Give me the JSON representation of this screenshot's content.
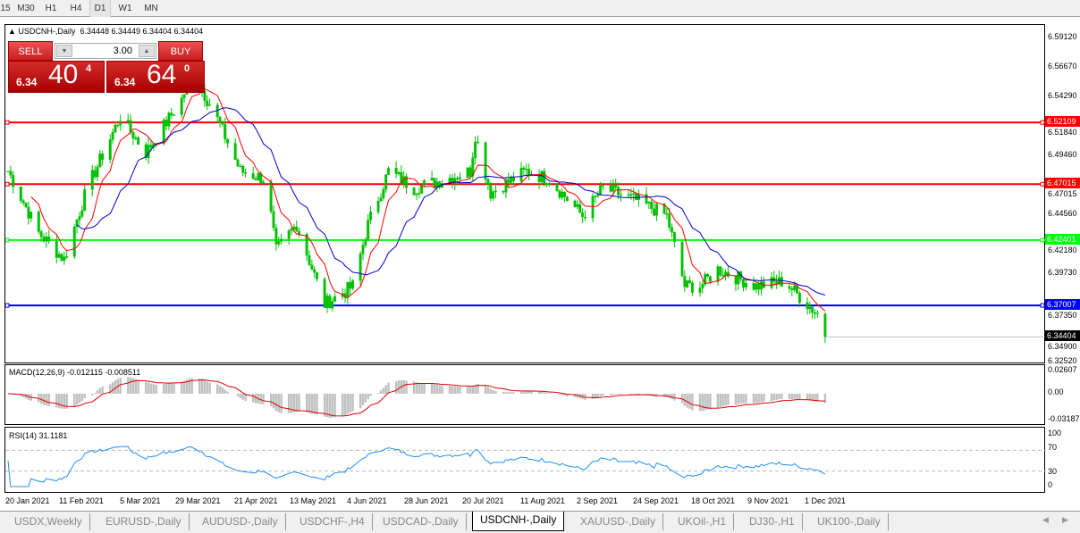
{
  "timeframes": [
    {
      "label": "15"
    },
    {
      "label": "M30"
    },
    {
      "label": "H1"
    },
    {
      "label": "H4"
    },
    {
      "label": "D1",
      "selected": true
    },
    {
      "label": "W1"
    },
    {
      "label": "MN"
    }
  ],
  "chart": {
    "title": "USDCNH-,Daily",
    "ohlc": "6.34448 6.34449 6.34404 6.34404"
  },
  "trade": {
    "sell_label": "SELL",
    "buy_label": "BUY",
    "lot": "3.00",
    "sell_prefix": "6.34",
    "sell_big": "40",
    "sell_sup": "4",
    "buy_prefix": "6.34",
    "buy_big": "64",
    "buy_sup": "0"
  },
  "price_axis": [
    "6.59120",
    "6.56670",
    "6.54290",
    "6.51840",
    "6.49460",
    "6.47015",
    "6.44560",
    "6.42180",
    "6.39730",
    "6.37350",
    "6.34900",
    "6.32520"
  ],
  "hlines": [
    {
      "value": "6.52109",
      "color": "#ff0000"
    },
    {
      "value": "6.47015",
      "color": "#ff0000"
    },
    {
      "value": "6.42401",
      "color": "#00ff00"
    },
    {
      "value": "6.37007",
      "color": "#0000ff"
    }
  ],
  "current_price": "6.34404",
  "macd": {
    "label": "MACD(12,26,9) -0.012115 -0.008511",
    "axis": [
      "0.02607",
      "0.00",
      "-0.03187"
    ]
  },
  "rsi": {
    "label": "RSI(14) 31.1181",
    "axis": [
      "100",
      "70",
      "30",
      "0"
    ]
  },
  "dates": [
    "20 Jan 2021",
    "11 Feb 2021",
    "5 Mar 2021",
    "29 Mar 2021",
    "21 Apr 2021",
    "13 May 2021",
    "4 Jun 2021",
    "28 Jun 2021",
    "20 Jul 2021",
    "11 Aug 2021",
    "2 Sep 2021",
    "24 Sep 2021",
    "18 Oct 2021",
    "9 Nov 2021",
    "1 Dec 2021"
  ],
  "tabs": [
    {
      "label": "USDX,Weekly"
    },
    {
      "label": "EURUSD-,Daily"
    },
    {
      "label": "AUDUSD-,Daily"
    },
    {
      "label": "USDCHF-,H4"
    },
    {
      "label": "USDCAD-,Daily"
    },
    {
      "label": "USDCNH-,Daily",
      "active": true
    },
    {
      "label": "XAUUSD-,Daily"
    },
    {
      "label": "UKOil-,H1"
    },
    {
      "label": "DJ30-,H1"
    },
    {
      "label": "UK100-,Daily"
    }
  ],
  "chart_data": {
    "type": "candlestick",
    "symbol": "USDCNH-",
    "timeframe": "Daily",
    "ylim": [
      6.3252,
      6.5912
    ],
    "closes": [
      [
        "2021-01-20",
        6.481
      ],
      [
        "2021-02-01",
        6.43
      ],
      [
        "2021-02-11",
        6.408
      ],
      [
        "2021-02-20",
        6.467
      ],
      [
        "2021-03-05",
        6.526
      ],
      [
        "2021-03-15",
        6.496
      ],
      [
        "2021-03-29",
        6.54
      ],
      [
        "2021-04-02",
        6.562
      ],
      [
        "2021-04-10",
        6.533
      ],
      [
        "2021-04-21",
        6.481
      ],
      [
        "2021-05-01",
        6.474
      ],
      [
        "2021-05-05",
        6.415
      ],
      [
        "2021-05-13",
        6.437
      ],
      [
        "2021-05-24",
        6.371
      ],
      [
        "2021-06-04",
        6.386
      ],
      [
        "2021-06-10",
        6.437
      ],
      [
        "2021-06-18",
        6.481
      ],
      [
        "2021-06-28",
        6.467
      ],
      [
        "2021-07-10",
        6.474
      ],
      [
        "2021-07-20",
        6.481
      ],
      [
        "2021-07-22",
        6.511
      ],
      [
        "2021-07-28",
        6.463
      ],
      [
        "2021-08-11",
        6.481
      ],
      [
        "2021-08-20",
        6.474
      ],
      [
        "2021-09-02",
        6.444
      ],
      [
        "2021-09-10",
        6.467
      ],
      [
        "2021-09-24",
        6.456
      ],
      [
        "2021-10-05",
        6.444
      ],
      [
        "2021-10-12",
        6.386
      ],
      [
        "2021-10-18",
        6.386
      ],
      [
        "2021-10-25",
        6.4
      ],
      [
        "2021-11-09",
        6.386
      ],
      [
        "2021-11-20",
        6.39
      ],
      [
        "2021-12-01",
        6.367
      ],
      [
        "2021-12-03",
        6.363
      ],
      [
        "2021-12-06",
        6.344
      ]
    ],
    "indicators": [
      "MA (red)",
      "MA (blue)",
      "MACD(12,26,9)",
      "RSI(14)"
    ]
  }
}
